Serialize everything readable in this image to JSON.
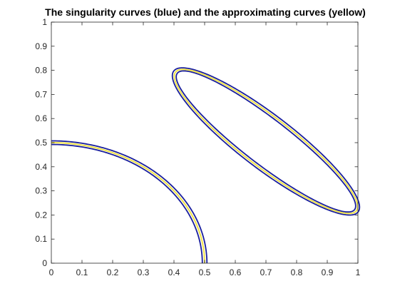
{
  "chart_data": {
    "type": "line",
    "title": "The singularity curves (blue) and the approximating curves (yellow)",
    "xlabel": "",
    "ylabel": "",
    "xlim": [
      0,
      1
    ],
    "ylim": [
      0,
      1
    ],
    "x_ticks": [
      "0",
      "0.1",
      "0.2",
      "0.3",
      "0.4",
      "0.5",
      "0.6",
      "0.7",
      "0.8",
      "0.9",
      "1"
    ],
    "y_ticks": [
      "0",
      "0.1",
      "0.2",
      "0.3",
      "0.4",
      "0.5",
      "0.6",
      "0.7",
      "0.8",
      "0.9",
      "1"
    ],
    "grid": false,
    "legend": "none",
    "colors": {
      "singularity": "#1a1f9e",
      "approximating": "#f0e34a"
    },
    "curves": [
      {
        "kind": "quarter-circle",
        "center": [
          0,
          0
        ],
        "singularity_radii": [
          0.4925,
          0.5075
        ],
        "approximating_radius": 0.5,
        "theta_range_deg": [
          0,
          90
        ]
      },
      {
        "kind": "ellipse",
        "center": [
          0.7,
          0.505
        ],
        "rotation_deg": -45,
        "approximating_semi_axes": [
          0.4125,
          0.0925
        ],
        "singularity_semi_axes": [
          [
            0.42,
            0.1
          ],
          [
            0.405,
            0.085
          ]
        ]
      }
    ]
  }
}
